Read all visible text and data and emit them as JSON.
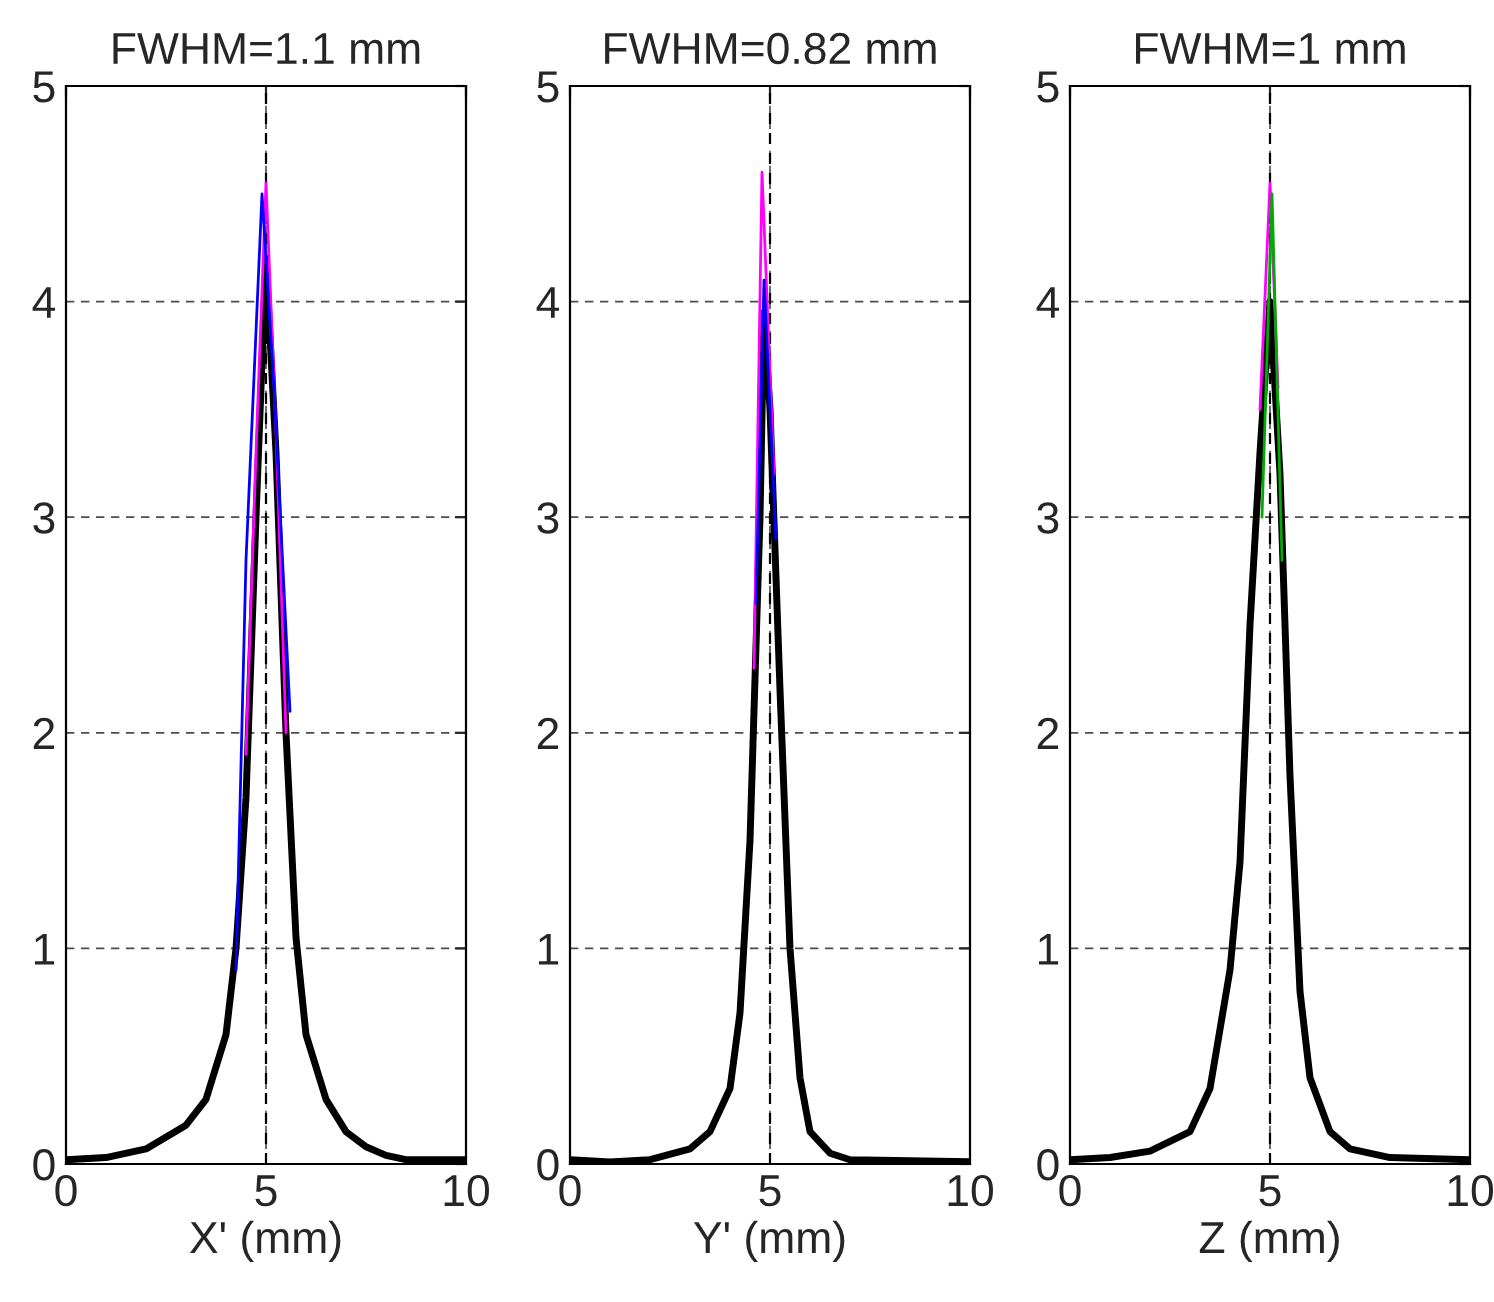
{
  "chart_data": [
    {
      "type": "line",
      "title": "FWHM=1.1 mm",
      "xlabel": "X' (mm)",
      "xlim": [
        0,
        10
      ],
      "ylim": [
        0,
        5
      ],
      "xticks": [
        0,
        5,
        10
      ],
      "yticks": [
        0,
        1,
        2,
        3,
        4,
        5
      ],
      "grid": true,
      "ref_lines": [
        {
          "axis": "x",
          "value": 5,
          "color": "#000000",
          "line_style": "dashed"
        }
      ],
      "series": [
        {
          "color": "#ff00ff",
          "x": [
            4.5,
            4.75,
            5,
            5.25,
            5.5
          ],
          "values": [
            1.9,
            3.3,
            4.55,
            3.4,
            2.0
          ]
        },
        {
          "color": "#0000ff",
          "x": [
            4.25,
            4.5,
            4.9,
            5.2,
            5.6
          ],
          "values": [
            0.9,
            2.8,
            4.5,
            3.6,
            2.1
          ]
        },
        {
          "color": "#000000",
          "x": [
            0,
            1,
            2,
            3,
            3.5,
            4,
            4.25,
            4.5,
            4.75,
            5,
            5.25,
            5.5,
            5.75,
            6,
            6.5,
            7,
            7.5,
            8,
            8.5,
            10
          ],
          "values": [
            0.02,
            0.03,
            0.07,
            0.18,
            0.3,
            0.6,
            1.0,
            1.7,
            3.0,
            4.2,
            3.3,
            2.0,
            1.05,
            0.6,
            0.3,
            0.15,
            0.08,
            0.04,
            0.02,
            0.02
          ]
        }
      ]
    },
    {
      "type": "line",
      "title": "FWHM=0.82 mm",
      "xlabel": "Y' (mm)",
      "xlim": [
        0,
        10
      ],
      "ylim": [
        0,
        5
      ],
      "xticks": [
        0,
        5,
        10
      ],
      "yticks": [
        0,
        1,
        2,
        3,
        4,
        5
      ],
      "grid": true,
      "ref_lines": [
        {
          "axis": "x",
          "value": 5,
          "color": "#000000",
          "line_style": "dashed"
        }
      ],
      "series": [
        {
          "color": "#ff00ff",
          "x": [
            4.6,
            4.8,
            5.1
          ],
          "values": [
            2.3,
            4.6,
            3.2
          ]
        },
        {
          "color": "#0000ff",
          "x": [
            4.65,
            4.85,
            5.15
          ],
          "values": [
            2.6,
            4.1,
            2.9
          ]
        },
        {
          "color": "#000000",
          "x": [
            0,
            1,
            2,
            3,
            3.5,
            4,
            4.25,
            4.5,
            4.75,
            4.85,
            5,
            5.25,
            5.5,
            5.75,
            6,
            6.5,
            7,
            10
          ],
          "values": [
            0.02,
            0.01,
            0.02,
            0.07,
            0.15,
            0.35,
            0.7,
            1.5,
            3.0,
            3.95,
            3.5,
            2.2,
            1.0,
            0.4,
            0.15,
            0.05,
            0.02,
            0.01
          ]
        }
      ]
    },
    {
      "type": "line",
      "title": "FWHM=1 mm",
      "xlabel": "Z (mm)",
      "xlim": [
        0,
        10
      ],
      "ylim": [
        0,
        5
      ],
      "xticks": [
        0,
        5,
        10
      ],
      "yticks": [
        0,
        1,
        2,
        3,
        4,
        5
      ],
      "grid": true,
      "ref_lines": [
        {
          "axis": "x",
          "value": 5,
          "color": "#000000",
          "line_style": "dashed"
        }
      ],
      "series": [
        {
          "color": "#ff00ff",
          "x": [
            4.75,
            5,
            5.2
          ],
          "values": [
            3.5,
            4.55,
            3.6
          ]
        },
        {
          "color": "#00aa00",
          "x": [
            4.8,
            5.05,
            5.3
          ],
          "values": [
            3.0,
            4.5,
            2.8
          ]
        },
        {
          "color": "#000000",
          "x": [
            0,
            1,
            2,
            3,
            3.5,
            4,
            4.25,
            4.5,
            4.75,
            5,
            5.25,
            5.5,
            5.75,
            6,
            6.5,
            7,
            8,
            10
          ],
          "values": [
            0.02,
            0.03,
            0.06,
            0.15,
            0.35,
            0.9,
            1.4,
            2.5,
            3.3,
            4.0,
            3.2,
            1.8,
            0.8,
            0.4,
            0.15,
            0.07,
            0.03,
            0.02
          ]
        }
      ]
    }
  ]
}
